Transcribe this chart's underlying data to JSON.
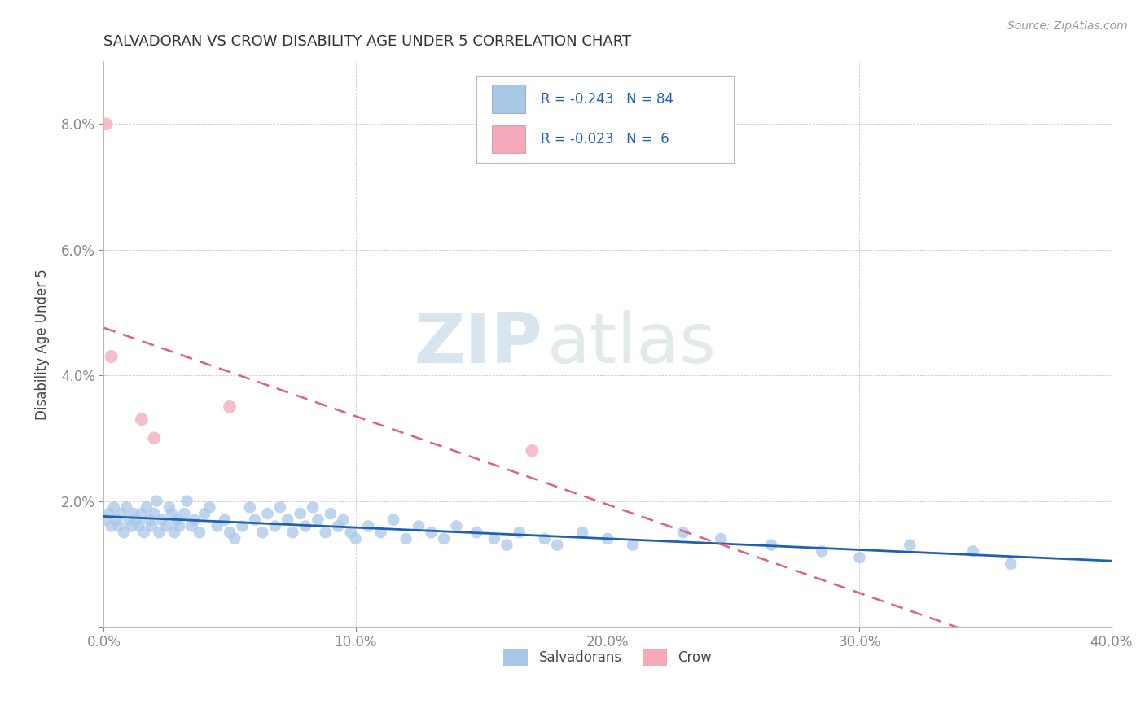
{
  "title": "SALVADORAN VS CROW DISABILITY AGE UNDER 5 CORRELATION CHART",
  "source": "Source: ZipAtlas.com",
  "ylabel": "Disability Age Under 5",
  "xlim": [
    0.0,
    0.4
  ],
  "ylim": [
    0.0,
    0.09
  ],
  "xticks": [
    0.0,
    0.1,
    0.2,
    0.3,
    0.4
  ],
  "yticks": [
    0.0,
    0.02,
    0.04,
    0.06,
    0.08
  ],
  "ytick_labels": [
    "",
    "2.0%",
    "4.0%",
    "6.0%",
    "8.0%"
  ],
  "xtick_labels": [
    "0.0%",
    "10.0%",
    "20.0%",
    "30.0%",
    "40.0%"
  ],
  "legend_salvadoran": "Salvadorans",
  "legend_crow": "Crow",
  "R_salvadoran": -0.243,
  "N_salvadoran": 84,
  "R_crow": -0.023,
  "N_crow": 6,
  "salvadoran_color": "#a8c8e8",
  "crow_color": "#f4a8b8",
  "salvadoran_line_color": "#2060b0",
  "crow_line_color": "#e06080",
  "watermark_zip": "ZIP",
  "watermark_atlas": "atlas",
  "background_color": "#ffffff",
  "salvadoran_x": [
    0.001,
    0.002,
    0.003,
    0.004,
    0.005,
    0.006,
    0.007,
    0.008,
    0.009,
    0.01,
    0.011,
    0.012,
    0.013,
    0.014,
    0.015,
    0.016,
    0.017,
    0.018,
    0.019,
    0.02,
    0.021,
    0.022,
    0.023,
    0.025,
    0.026,
    0.027,
    0.028,
    0.029,
    0.03,
    0.032,
    0.033,
    0.035,
    0.036,
    0.038,
    0.04,
    0.042,
    0.045,
    0.048,
    0.05,
    0.052,
    0.055,
    0.058,
    0.06,
    0.063,
    0.065,
    0.068,
    0.07,
    0.073,
    0.075,
    0.078,
    0.08,
    0.083,
    0.085,
    0.088,
    0.09,
    0.093,
    0.095,
    0.098,
    0.1,
    0.105,
    0.11,
    0.115,
    0.12,
    0.125,
    0.13,
    0.135,
    0.14,
    0.148,
    0.155,
    0.16,
    0.165,
    0.175,
    0.18,
    0.19,
    0.2,
    0.21,
    0.23,
    0.245,
    0.265,
    0.285,
    0.3,
    0.32,
    0.345,
    0.36
  ],
  "salvadoran_y": [
    0.017,
    0.018,
    0.016,
    0.019,
    0.017,
    0.016,
    0.018,
    0.015,
    0.019,
    0.017,
    0.016,
    0.018,
    0.017,
    0.016,
    0.018,
    0.015,
    0.019,
    0.017,
    0.016,
    0.018,
    0.02,
    0.015,
    0.017,
    0.016,
    0.019,
    0.018,
    0.015,
    0.017,
    0.016,
    0.018,
    0.02,
    0.016,
    0.017,
    0.015,
    0.018,
    0.019,
    0.016,
    0.017,
    0.015,
    0.014,
    0.016,
    0.019,
    0.017,
    0.015,
    0.018,
    0.016,
    0.019,
    0.017,
    0.015,
    0.018,
    0.016,
    0.019,
    0.017,
    0.015,
    0.018,
    0.016,
    0.017,
    0.015,
    0.014,
    0.016,
    0.015,
    0.017,
    0.014,
    0.016,
    0.015,
    0.014,
    0.016,
    0.015,
    0.014,
    0.013,
    0.015,
    0.014,
    0.013,
    0.015,
    0.014,
    0.013,
    0.015,
    0.014,
    0.013,
    0.012,
    0.011,
    0.013,
    0.012,
    0.01
  ],
  "crow_x": [
    0.001,
    0.003,
    0.015,
    0.02,
    0.05,
    0.17
  ],
  "crow_y": [
    0.08,
    0.043,
    0.033,
    0.03,
    0.035,
    0.028
  ]
}
